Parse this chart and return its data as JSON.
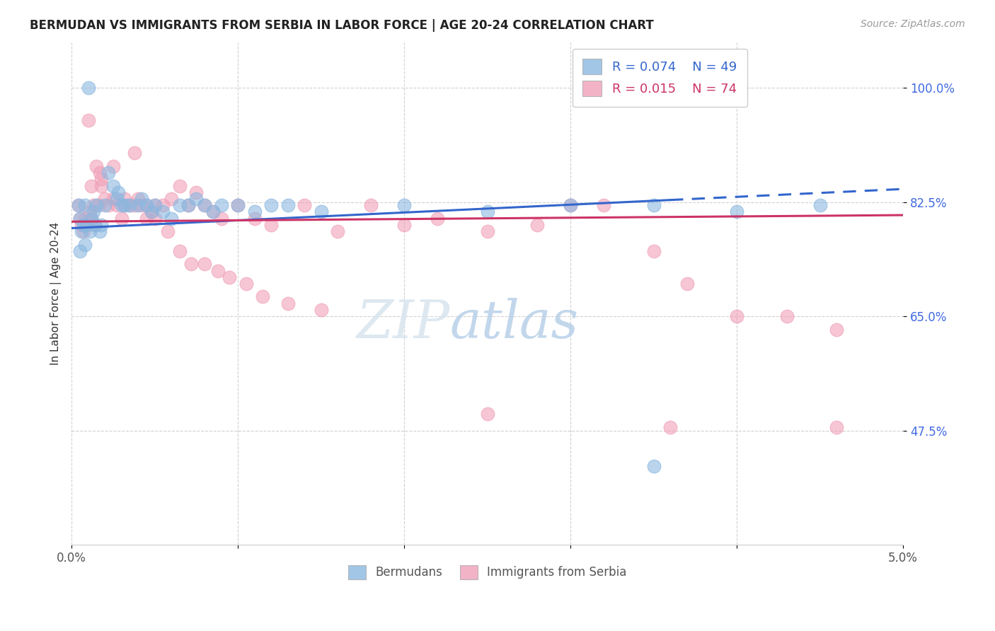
{
  "title": "BERMUDAN VS IMMIGRANTS FROM SERBIA IN LABOR FORCE | AGE 20-24 CORRELATION CHART",
  "source": "Source: ZipAtlas.com",
  "ylabel": "In Labor Force | Age 20-24",
  "xlim": [
    0.0,
    5.0
  ],
  "ylim": [
    30.0,
    107.0
  ],
  "x_ticks": [
    0.0,
    1.0,
    2.0,
    3.0,
    4.0,
    5.0
  ],
  "x_tick_labels": [
    "0.0%",
    "",
    "",
    "",
    "",
    "5.0%"
  ],
  "y_ticks": [
    47.5,
    65.0,
    82.5,
    100.0
  ],
  "y_tick_labels": [
    "47.5%",
    "65.0%",
    "82.5%",
    "100.0%"
  ],
  "blue_color": "#8bb8e0",
  "pink_color": "#f0a0b8",
  "trend_blue": "#3366cc",
  "trend_pink": "#cc3366",
  "background_color": "#ffffff",
  "grid_color": "#cccccc",
  "blue_trend_x0": 0.0,
  "blue_trend_y0": 78.5,
  "blue_trend_x1": 5.0,
  "blue_trend_y1": 84.5,
  "blue_dash_start": 3.6,
  "pink_trend_x0": 0.0,
  "pink_trend_y0": 79.5,
  "pink_trend_x1": 5.0,
  "pink_trend_y1": 80.5,
  "bermudans_x": [
    0.04,
    0.05,
    0.06,
    0.07,
    0.08,
    0.09,
    0.1,
    0.12,
    0.13,
    0.14,
    0.15,
    0.17,
    0.18,
    0.2,
    0.22,
    0.25,
    0.27,
    0.28,
    0.3,
    0.32,
    0.35,
    0.4,
    0.42,
    0.45,
    0.48,
    0.5,
    0.55,
    0.6,
    0.65,
    0.7,
    0.75,
    0.8,
    0.85,
    0.9,
    1.0,
    1.1,
    1.2,
    1.3,
    1.5,
    2.0,
    2.5,
    3.0,
    3.5,
    4.0,
    4.5,
    0.05,
    0.08,
    0.11,
    3.5
  ],
  "bermudans_y": [
    82,
    80,
    78,
    79,
    82,
    79,
    100,
    80,
    81,
    79,
    82,
    78,
    79,
    82,
    87,
    85,
    83,
    84,
    82,
    82,
    82,
    82,
    83,
    82,
    81,
    82,
    81,
    80,
    82,
    82,
    83,
    82,
    81,
    82,
    82,
    81,
    82,
    82,
    81,
    82,
    81,
    82,
    82,
    81,
    82,
    75,
    76,
    78,
    42
  ],
  "serbia_x": [
    0.04,
    0.05,
    0.06,
    0.07,
    0.08,
    0.09,
    0.1,
    0.11,
    0.12,
    0.13,
    0.14,
    0.15,
    0.16,
    0.17,
    0.18,
    0.2,
    0.22,
    0.25,
    0.27,
    0.3,
    0.32,
    0.35,
    0.38,
    0.4,
    0.42,
    0.45,
    0.48,
    0.5,
    0.55,
    0.6,
    0.65,
    0.7,
    0.75,
    0.8,
    0.85,
    0.9,
    1.0,
    1.1,
    1.2,
    1.4,
    1.6,
    1.8,
    2.0,
    2.2,
    2.5,
    2.8,
    3.0,
    3.2,
    3.5,
    3.7,
    4.0,
    4.3,
    4.6,
    0.08,
    0.12,
    0.18,
    0.25,
    0.32,
    0.38,
    0.45,
    0.5,
    0.58,
    0.65,
    0.72,
    0.8,
    0.88,
    0.95,
    1.05,
    1.15,
    1.3,
    1.5,
    2.5,
    3.6,
    4.6
  ],
  "serbia_y": [
    82,
    80,
    79,
    78,
    80,
    79,
    95,
    81,
    80,
    82,
    79,
    88,
    82,
    87,
    85,
    83,
    82,
    83,
    82,
    80,
    82,
    82,
    90,
    83,
    82,
    82,
    81,
    80,
    82,
    83,
    85,
    82,
    84,
    82,
    81,
    80,
    82,
    80,
    79,
    82,
    78,
    82,
    79,
    80,
    78,
    79,
    82,
    82,
    75,
    70,
    65,
    65,
    63,
    79,
    85,
    86,
    88,
    83,
    82,
    80,
    82,
    78,
    75,
    73,
    73,
    72,
    71,
    70,
    68,
    67,
    66,
    50,
    48,
    48
  ]
}
